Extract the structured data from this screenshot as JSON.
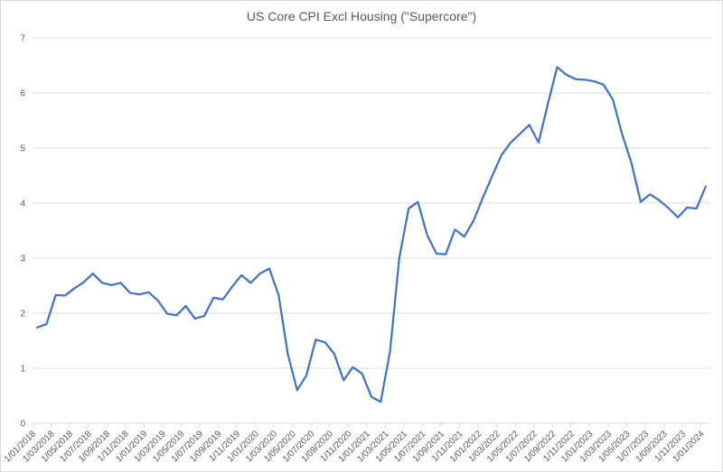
{
  "chart_data": {
    "type": "line",
    "title": "US Core CPI Excl Housing (\"Supercore\")",
    "xlabel": "",
    "ylabel": "",
    "ylim": [
      0,
      7
    ],
    "yticks": [
      0,
      1,
      2,
      3,
      4,
      5,
      6,
      7
    ],
    "grid": "horizontal",
    "legend": "none",
    "x_tick_every": 2,
    "x_tick_label_rotation": -45,
    "categories": [
      "1/01/2018",
      "1/02/2018",
      "1/03/2018",
      "1/04/2018",
      "1/05/2018",
      "1/06/2018",
      "1/07/2018",
      "1/08/2018",
      "1/09/2018",
      "1/10/2018",
      "1/11/2018",
      "1/12/2018",
      "1/01/2019",
      "1/02/2019",
      "1/03/2019",
      "1/04/2019",
      "1/05/2019",
      "1/06/2019",
      "1/07/2019",
      "1/08/2019",
      "1/09/2019",
      "1/10/2019",
      "1/11/2019",
      "1/12/2019",
      "1/01/2020",
      "1/02/2020",
      "1/03/2020",
      "1/04/2020",
      "1/05/2020",
      "1/06/2020",
      "1/07/2020",
      "1/08/2020",
      "1/09/2020",
      "1/10/2020",
      "1/11/2020",
      "1/12/2020",
      "1/01/2021",
      "1/02/2021",
      "1/03/2021",
      "1/04/2021",
      "1/05/2021",
      "1/06/2021",
      "1/07/2021",
      "1/08/2021",
      "1/09/2021",
      "1/10/2021",
      "1/11/2021",
      "1/12/2021",
      "1/01/2022",
      "1/02/2022",
      "1/03/2022",
      "1/04/2022",
      "1/05/2022",
      "1/06/2022",
      "1/07/2022",
      "1/08/2022",
      "1/09/2022",
      "1/10/2022",
      "1/11/2022",
      "1/12/2022",
      "1/01/2023",
      "1/02/2023",
      "1/03/2023",
      "1/04/2023",
      "1/05/2023",
      "1/06/2023",
      "1/07/2023",
      "1/08/2023",
      "1/09/2023",
      "1/10/2023",
      "1/11/2023",
      "1/12/2023",
      "1/01/2024"
    ],
    "series": [
      {
        "name": "US Core CPI Excl Housing (\"Supercore\")",
        "values": [
          1.74,
          1.8,
          2.33,
          2.32,
          2.45,
          2.56,
          2.72,
          2.55,
          2.51,
          2.55,
          2.37,
          2.34,
          2.38,
          2.23,
          1.99,
          1.96,
          2.13,
          1.9,
          1.95,
          2.28,
          2.25,
          2.48,
          2.69,
          2.55,
          2.72,
          2.81,
          2.33,
          1.25,
          0.6,
          0.87,
          1.52,
          1.47,
          1.26,
          0.78,
          1.02,
          0.9,
          0.48,
          0.39,
          1.3,
          3.0,
          3.9,
          4.02,
          3.42,
          3.08,
          3.07,
          3.52,
          3.39,
          3.68,
          4.1,
          4.49,
          4.87,
          5.1,
          5.26,
          5.42,
          5.1,
          5.8,
          6.47,
          6.33,
          6.25,
          6.24,
          6.21,
          6.15,
          5.88,
          5.25,
          4.73,
          4.02,
          4.16,
          4.05,
          3.91,
          3.74,
          3.92,
          3.9,
          4.3
        ]
      }
    ],
    "colors": {
      "line": "#4472C4",
      "grid": "#D9D9D9",
      "axis": "#D9D9D9",
      "text": "#595959",
      "frame_border": "#D9D9D9",
      "background": "#FFFFFF"
    }
  }
}
